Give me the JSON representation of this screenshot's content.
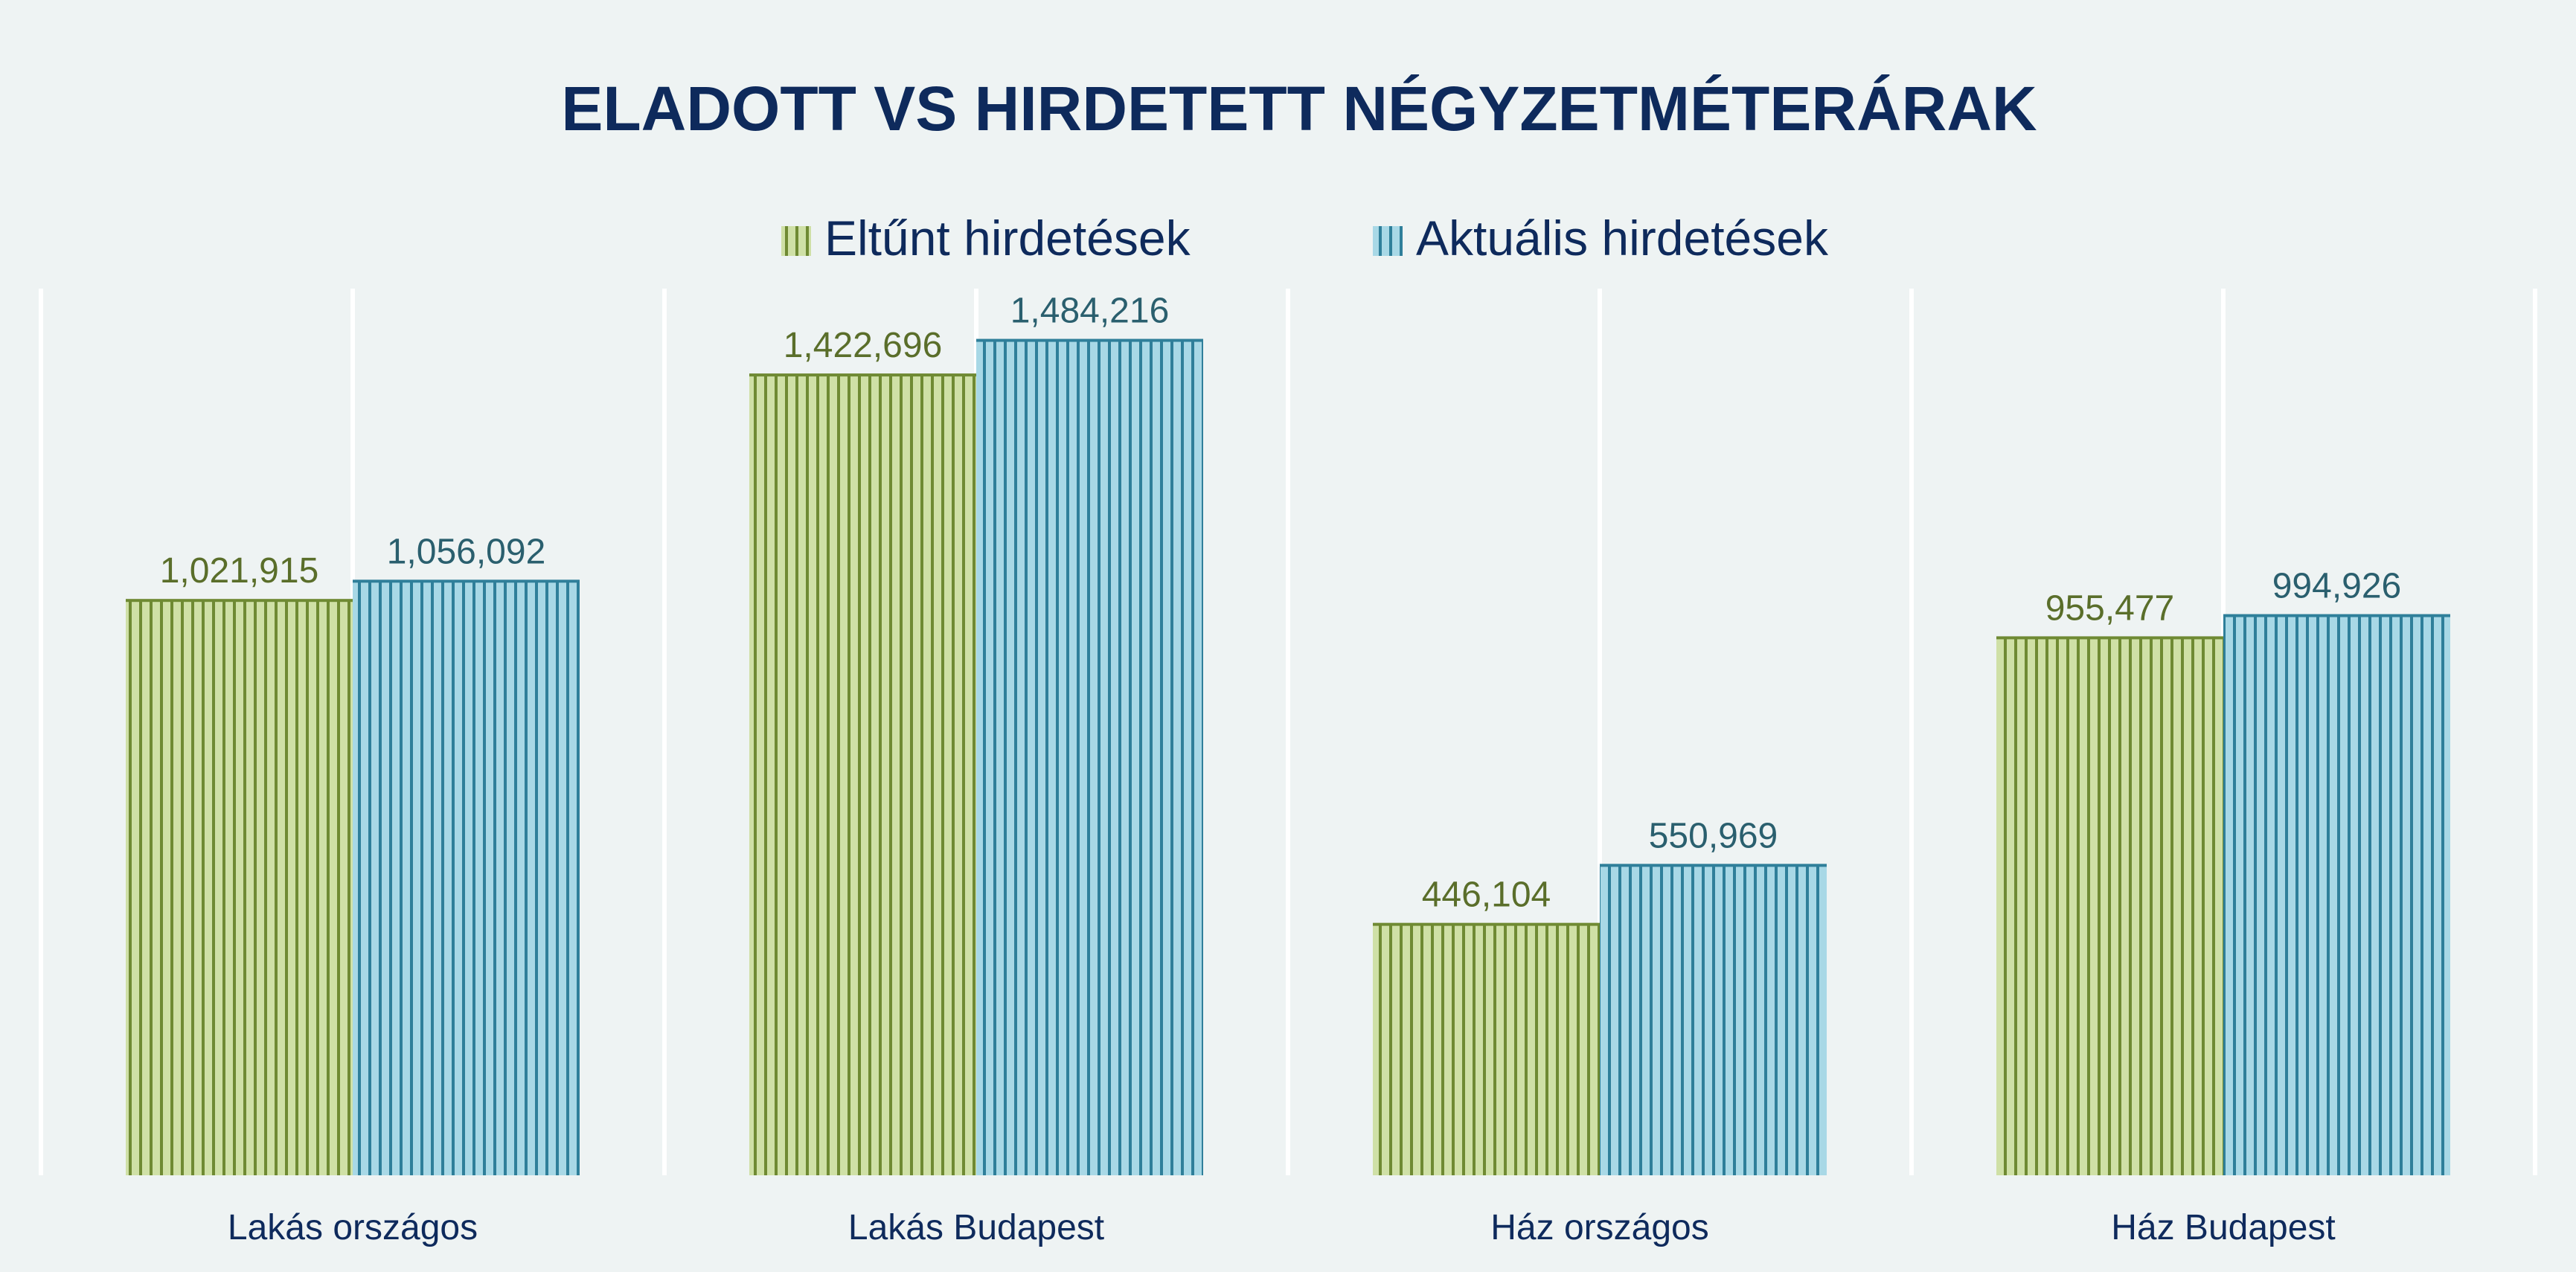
{
  "chart_data": {
    "type": "bar",
    "title": "ELADOTT VS HIRDETETT NÉGYZETMÉTERÁRAK",
    "xlabel": "",
    "ylabel": "",
    "ylim": [
      0,
      1600000
    ],
    "grid": false,
    "legend_position": "top-center",
    "categories": [
      "Lakás országos",
      "Lakás Budapest",
      "Ház országos",
      "Ház Budapest"
    ],
    "series": [
      {
        "name": "Eltűnt hirdetések",
        "values": [
          1021915,
          1422696,
          446104,
          955477
        ],
        "labels": [
          "1,021,915",
          "1,422,696",
          "446,104",
          "955,477"
        ],
        "fill": "#cfe0a6",
        "stripe": "#6f8a33",
        "label_color": "#5a6e2a"
      },
      {
        "name": "Aktuális hirdetések",
        "values": [
          1056092,
          1484216,
          550969,
          994926
        ],
        "labels": [
          "1,056,092",
          "1,484,216",
          "550,969",
          "994,926"
        ],
        "fill": "#a8d8e6",
        "stripe": "#2f7f9a",
        "label_color": "#2a5f6e"
      }
    ]
  },
  "colors": {
    "background": "#eef3f3",
    "title": "#0e2a5c",
    "category_label": "#0e2a5c",
    "divider": "#ffffff"
  }
}
